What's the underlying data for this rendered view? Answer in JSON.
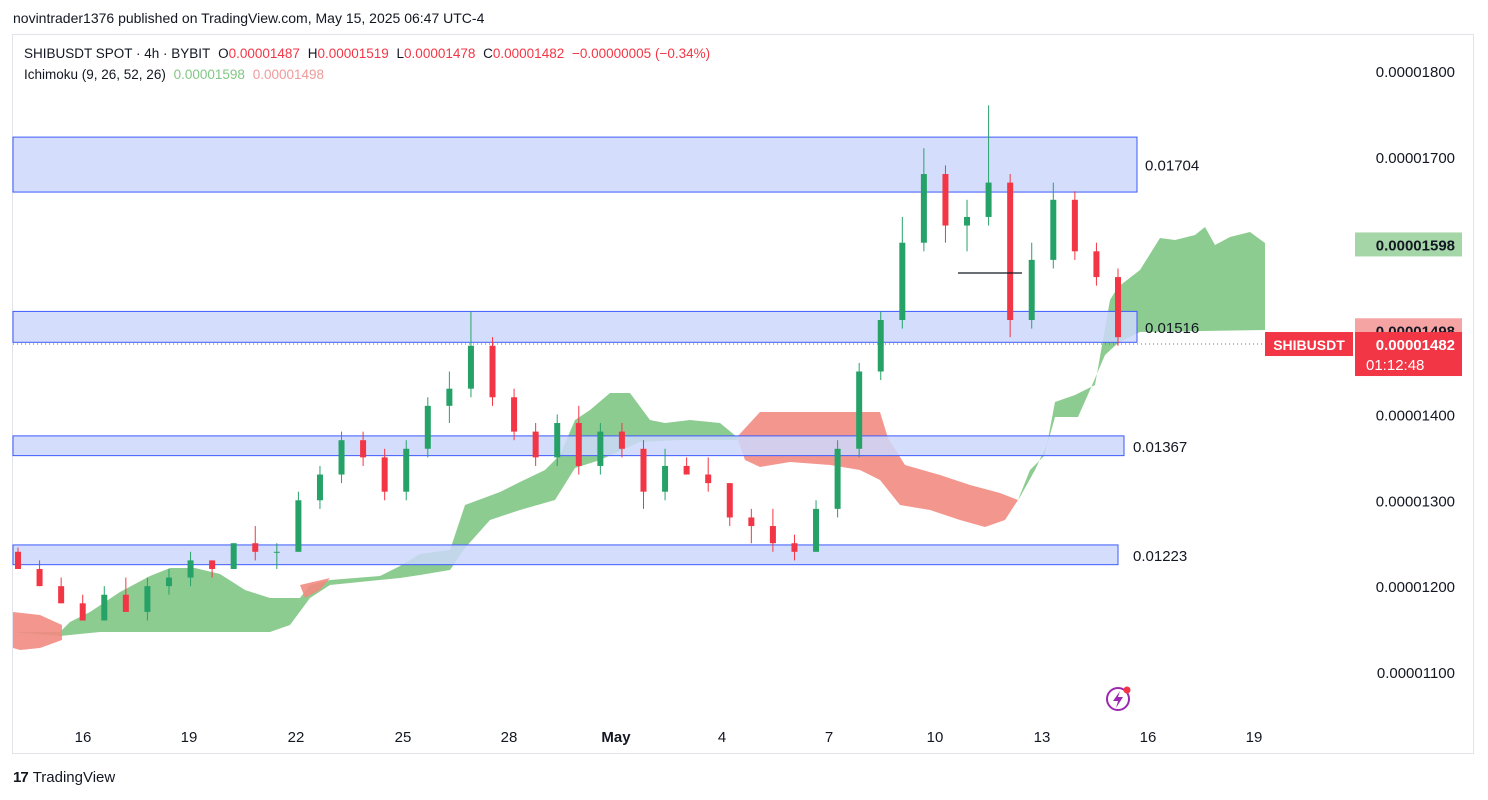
{
  "header": {
    "published": "novintrader1376 published on TradingView.com, May 15, 2025 06:47 UTC-4"
  },
  "legend": {
    "symbol": "SHIBUSDT SPOT · 4h · BYBIT",
    "o_label": "O",
    "o_value": "0.00001487",
    "h_label": "H",
    "h_value": "0.00001519",
    "l_label": "L",
    "l_value": "0.00001478",
    "c_label": "C",
    "c_value": "0.00001482",
    "change": "−0.00000005 (−0.34%)",
    "indicator": "Ichimoku (9, 26, 52, 26)",
    "span_a": "0.00001598",
    "span_b": "0.00001498"
  },
  "footer": {
    "brand": "TradingView",
    "brand_mark": "17"
  },
  "colors": {
    "up": "#26a269",
    "down": "#f23645",
    "cloud_bull": "#81c784",
    "cloud_bear": "#f28b82",
    "zone_fill": "#cdd8fb",
    "zone_stroke": "#3d5afe"
  },
  "chart_data": {
    "type": "candlestick",
    "symbol": "SHIBUSDT",
    "timeframe": "4h",
    "y_ticks": [
      "0.00001800",
      "0.00001700",
      "0.00001400",
      "0.00001300",
      "0.00001200",
      "0.00001100"
    ],
    "ylim": [
      1.02e-05,
      1.84e-05
    ],
    "x_ticks": [
      "16",
      "19",
      "22",
      "25",
      "28",
      "May",
      "4",
      "7",
      "10",
      "13",
      "16",
      "19"
    ],
    "price_labels": {
      "span_a": "0.00001598",
      "span_b": "0.00001498",
      "last_symbol": "SHIBUSDT",
      "last_price": "0.00001482",
      "countdown": "01:12:48"
    },
    "zones": [
      {
        "label": "0.01704",
        "top": 1.723e-05,
        "bottom": 1.659e-05
      },
      {
        "label": "0.01516",
        "top": 1.52e-05,
        "bottom": 1.484e-05
      },
      {
        "label": "0.01367",
        "top": 1.375e-05,
        "bottom": 1.352e-05
      },
      {
        "label": "0.01223",
        "top": 1.248e-05,
        "bottom": 1.225e-05
      }
    ],
    "candles_approx": [
      [
        1.24e-05,
        1.245e-05,
        1.22e-05,
        1.22e-05
      ],
      [
        1.22e-05,
        1.23e-05,
        1.2e-05,
        1.2e-05
      ],
      [
        1.2e-05,
        1.21e-05,
        1.18e-05,
        1.18e-05
      ],
      [
        1.18e-05,
        1.19e-05,
        1.16e-05,
        1.16e-05
      ],
      [
        1.16e-05,
        1.2e-05,
        1.16e-05,
        1.19e-05
      ],
      [
        1.19e-05,
        1.21e-05,
        1.17e-05,
        1.17e-05
      ],
      [
        1.17e-05,
        1.21e-05,
        1.16e-05,
        1.2e-05
      ],
      [
        1.2e-05,
        1.22e-05,
        1.19e-05,
        1.21e-05
      ],
      [
        1.21e-05,
        1.24e-05,
        1.2e-05,
        1.23e-05
      ],
      [
        1.23e-05,
        1.23e-05,
        1.21e-05,
        1.22e-05
      ],
      [
        1.22e-05,
        1.25e-05,
        1.22e-05,
        1.25e-05
      ],
      [
        1.25e-05,
        1.27e-05,
        1.23e-05,
        1.24e-05
      ],
      [
        1.24e-05,
        1.25e-05,
        1.22e-05,
        1.24e-05
      ],
      [
        1.24e-05,
        1.31e-05,
        1.24e-05,
        1.3e-05
      ],
      [
        1.3e-05,
        1.34e-05,
        1.29e-05,
        1.33e-05
      ],
      [
        1.33e-05,
        1.38e-05,
        1.32e-05,
        1.37e-05
      ],
      [
        1.37e-05,
        1.38e-05,
        1.34e-05,
        1.35e-05
      ],
      [
        1.35e-05,
        1.36e-05,
        1.3e-05,
        1.31e-05
      ],
      [
        1.31e-05,
        1.37e-05,
        1.3e-05,
        1.36e-05
      ],
      [
        1.36e-05,
        1.42e-05,
        1.35e-05,
        1.41e-05
      ],
      [
        1.41e-05,
        1.45e-05,
        1.39e-05,
        1.43e-05
      ],
      [
        1.43e-05,
        1.52e-05,
        1.42e-05,
        1.48e-05
      ],
      [
        1.48e-05,
        1.49e-05,
        1.41e-05,
        1.42e-05
      ],
      [
        1.42e-05,
        1.43e-05,
        1.37e-05,
        1.38e-05
      ],
      [
        1.38e-05,
        1.39e-05,
        1.34e-05,
        1.35e-05
      ],
      [
        1.35e-05,
        1.4e-05,
        1.34e-05,
        1.39e-05
      ],
      [
        1.39e-05,
        1.41e-05,
        1.33e-05,
        1.34e-05
      ],
      [
        1.34e-05,
        1.39e-05,
        1.33e-05,
        1.38e-05
      ],
      [
        1.38e-05,
        1.39e-05,
        1.35e-05,
        1.36e-05
      ],
      [
        1.36e-05,
        1.37e-05,
        1.29e-05,
        1.31e-05
      ],
      [
        1.31e-05,
        1.36e-05,
        1.3e-05,
        1.34e-05
      ],
      [
        1.34e-05,
        1.35e-05,
        1.33e-05,
        1.33e-05
      ],
      [
        1.33e-05,
        1.35e-05,
        1.31e-05,
        1.32e-05
      ],
      [
        1.32e-05,
        1.32e-05,
        1.27e-05,
        1.28e-05
      ],
      [
        1.28e-05,
        1.29e-05,
        1.25e-05,
        1.27e-05
      ],
      [
        1.27e-05,
        1.29e-05,
        1.24e-05,
        1.25e-05
      ],
      [
        1.25e-05,
        1.26e-05,
        1.23e-05,
        1.24e-05
      ],
      [
        1.24e-05,
        1.3e-05,
        1.24e-05,
        1.29e-05
      ],
      [
        1.29e-05,
        1.37e-05,
        1.28e-05,
        1.36e-05
      ],
      [
        1.36e-05,
        1.46e-05,
        1.35e-05,
        1.45e-05
      ],
      [
        1.45e-05,
        1.52e-05,
        1.44e-05,
        1.51e-05
      ],
      [
        1.51e-05,
        1.63e-05,
        1.5e-05,
        1.6e-05
      ],
      [
        1.6e-05,
        1.71e-05,
        1.59e-05,
        1.68e-05
      ],
      [
        1.68e-05,
        1.69e-05,
        1.6e-05,
        1.62e-05
      ],
      [
        1.62e-05,
        1.65e-05,
        1.59e-05,
        1.63e-05
      ],
      [
        1.63e-05,
        1.76e-05,
        1.62e-05,
        1.67e-05
      ],
      [
        1.67e-05,
        1.68e-05,
        1.49e-05,
        1.51e-05
      ],
      [
        1.51e-05,
        1.6e-05,
        1.5e-05,
        1.58e-05
      ],
      [
        1.58e-05,
        1.67e-05,
        1.57e-05,
        1.65e-05
      ],
      [
        1.65e-05,
        1.66e-05,
        1.58e-05,
        1.59e-05
      ],
      [
        1.59e-05,
        1.6e-05,
        1.55e-05,
        1.56e-05
      ],
      [
        1.56e-05,
        1.57e-05,
        1.48e-05,
        1.49e-05
      ]
    ]
  }
}
